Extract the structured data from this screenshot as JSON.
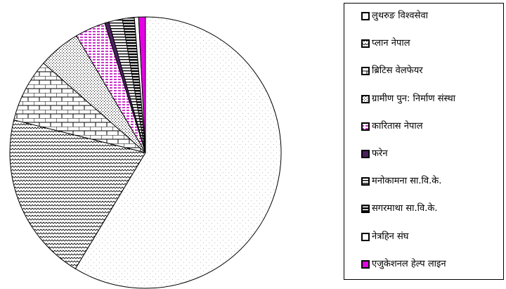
{
  "chart_data": {
    "type": "pie",
    "title": "",
    "start": "top",
    "direction": "clockwise",
    "legend_position": "right",
    "slices": [
      {
        "label": "लुथरुङ विश्वसेवा",
        "value": 58.0,
        "pattern": "light-dots",
        "color": "#ffffff"
      },
      {
        "label": "प्लान नेपाल",
        "value": 20.0,
        "pattern": "zigzag",
        "color": "#ffffff"
      },
      {
        "label": "ब्रिटिस वेलफेयर",
        "value": 7.5,
        "pattern": "bricks",
        "color": "#ffffff"
      },
      {
        "label": "ग्रामीण पुन: निर्माण संस्था",
        "value": 5.0,
        "pattern": "dense-dots",
        "color": "#ffffff"
      },
      {
        "label": "कारितास नेपाल",
        "value": 3.6,
        "pattern": "pink-dashes",
        "color": "#cc33cc"
      },
      {
        "label": "फरेन",
        "value": 0.5,
        "pattern": "solid",
        "color": "#4b1f5e"
      },
      {
        "label": "मनोकामना सा.वि.के.",
        "value": 1.6,
        "pattern": "horizontal-lines",
        "color": "#000000"
      },
      {
        "label": "सगरमाथा सा.वि.के.",
        "value": 1.4,
        "pattern": "heavy-horizontal",
        "color": "#000000"
      },
      {
        "label": "नेत्रहिन संघ",
        "value": 0.5,
        "pattern": "none",
        "color": "#ffffff"
      },
      {
        "label": "एजुकेशनल हेल्प लाइन",
        "value": 0.8,
        "pattern": "solid",
        "color": "#e600e6"
      }
    ]
  }
}
